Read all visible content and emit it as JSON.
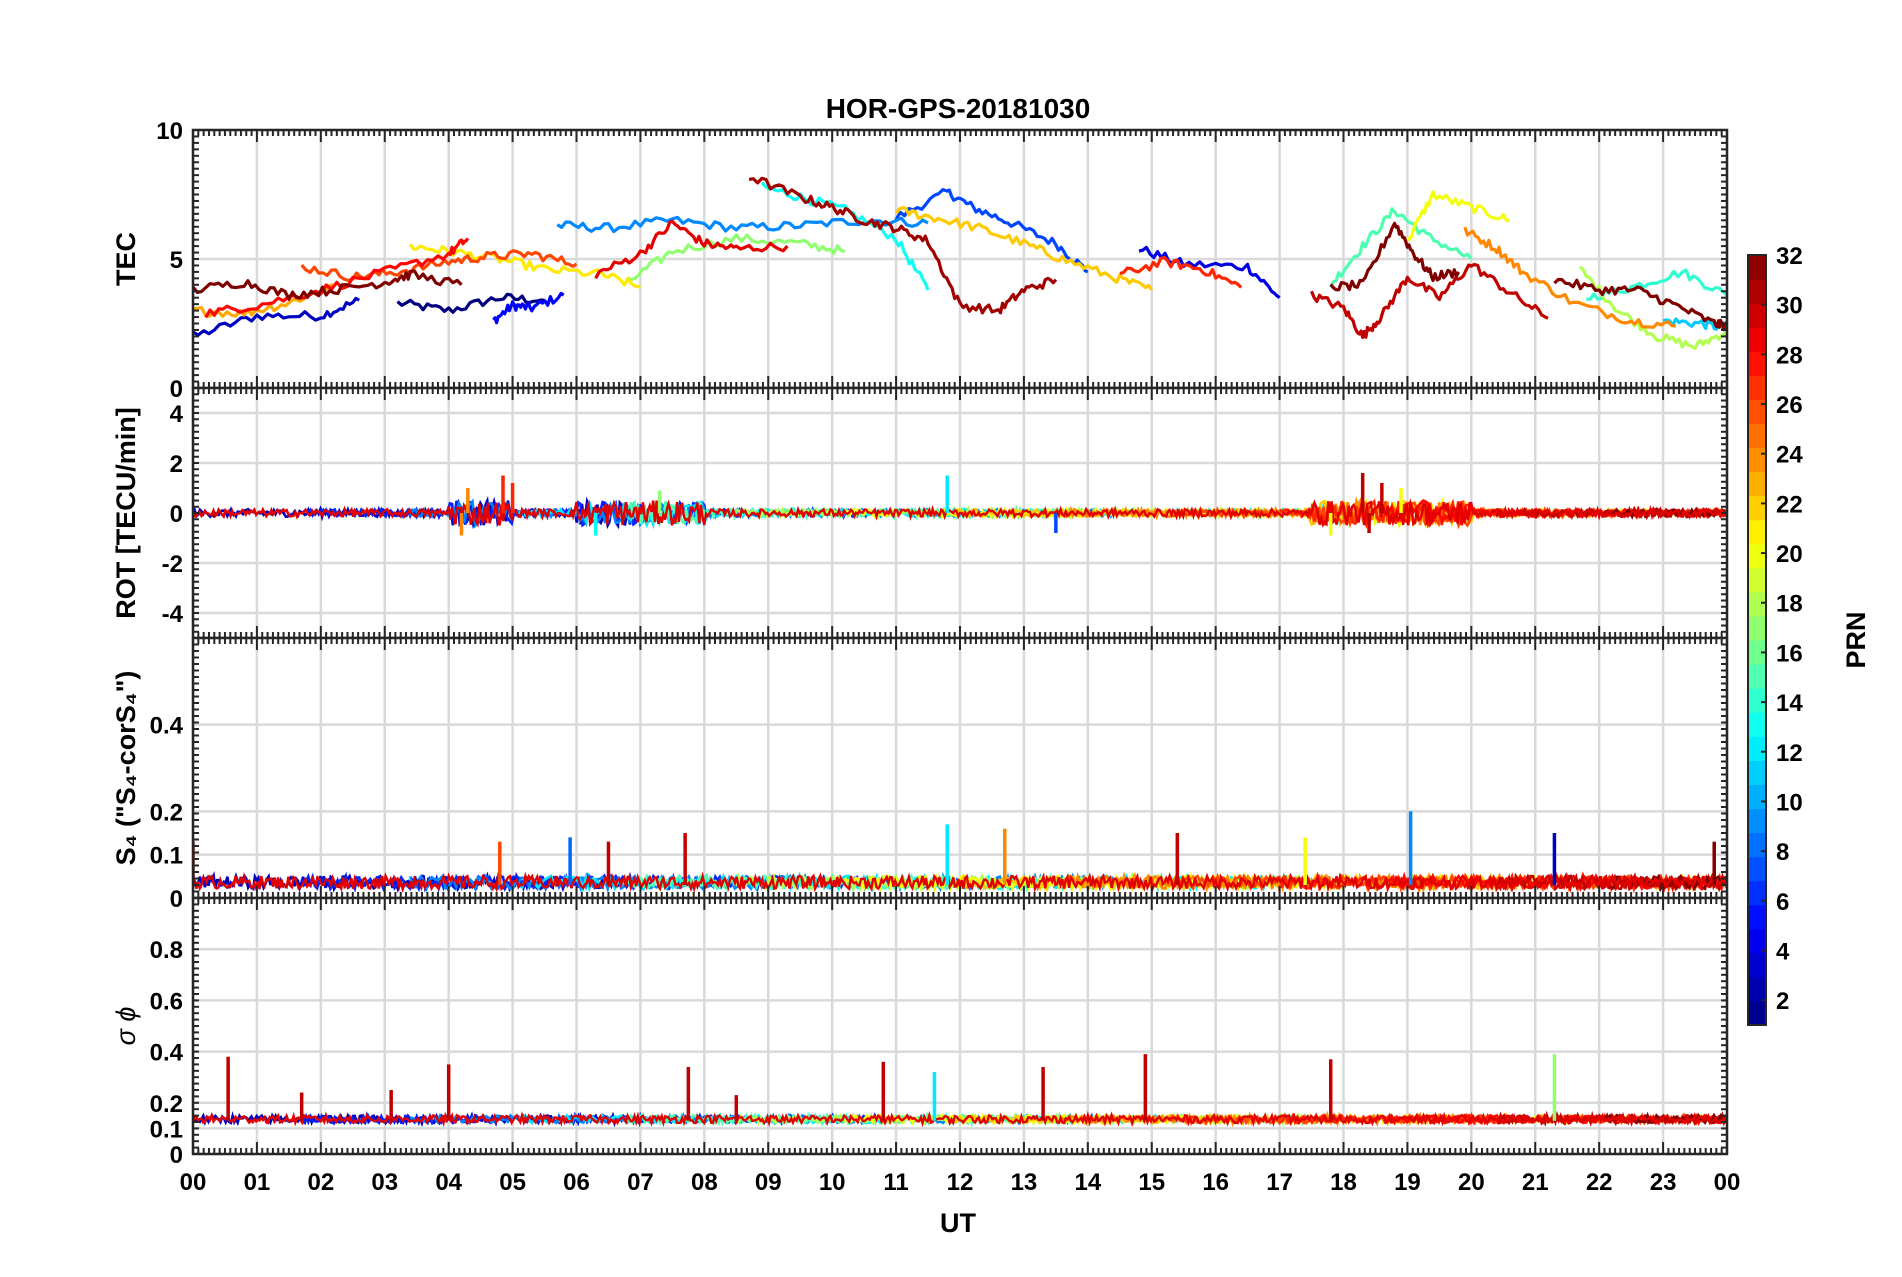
{
  "chart_data": {
    "type": "line",
    "title": "HOR-GPS-20181030",
    "xlabel": "UT",
    "x_tick_labels": [
      "00",
      "01",
      "02",
      "03",
      "04",
      "05",
      "06",
      "07",
      "08",
      "09",
      "10",
      "11",
      "12",
      "13",
      "14",
      "15",
      "16",
      "17",
      "18",
      "19",
      "20",
      "21",
      "22",
      "23",
      "00"
    ],
    "xlim": [
      0,
      24
    ],
    "grid": true,
    "colorbar": {
      "label": "PRN",
      "range": [
        1,
        32
      ],
      "tick_labels": [
        "2",
        "4",
        "6",
        "8",
        "10",
        "12",
        "14",
        "16",
        "18",
        "20",
        "22",
        "24",
        "26",
        "28",
        "30",
        "32"
      ],
      "tick_values": [
        2,
        4,
        6,
        8,
        10,
        12,
        14,
        16,
        18,
        20,
        22,
        24,
        26,
        28,
        30,
        32
      ],
      "colormap": "jet",
      "placement": "right"
    },
    "panels": [
      {
        "id": "tec",
        "ylabel": "TEC",
        "ylim": [
          0,
          10
        ],
        "y_tick_values": [
          0,
          5,
          10
        ],
        "y_tick_labels": [
          "0",
          "5",
          "10"
        ],
        "series": [
          {
            "prn": 1,
            "x": [
              3.2,
              4.0,
              4.8,
              5.5
            ],
            "y": [
              3.3,
              3.0,
              3.5,
              3.4
            ]
          },
          {
            "prn": 3,
            "x": [
              0.0,
              1.0,
              2.0,
              2.6
            ],
            "y": [
              2.0,
              2.8,
              2.8,
              3.4
            ]
          },
          {
            "prn": 5,
            "x": [
              4.7,
              5.0,
              5.3,
              5.8
            ],
            "y": [
              2.6,
              3.2,
              3.1,
              3.6
            ]
          },
          {
            "prn": 7,
            "x": [
              11.0,
              11.8,
              12.2,
              12.8,
              13.5,
              14.0
            ],
            "y": [
              6.6,
              7.6,
              7.0,
              6.4,
              5.6,
              4.5
            ]
          },
          {
            "prn": 4,
            "x": [
              14.8,
              15.5,
              16.5,
              17.0
            ],
            "y": [
              5.4,
              4.8,
              4.7,
              3.5
            ]
          },
          {
            "prn": 9,
            "x": [
              5.7,
              6.5,
              7.5,
              8.5,
              9.5,
              10.5,
              11.5
            ],
            "y": [
              6.3,
              6.2,
              6.5,
              6.2,
              6.3,
              6.5,
              6.4
            ]
          },
          {
            "prn": 11,
            "x": [
              23.0,
              23.6,
              24.0
            ],
            "y": [
              2.6,
              2.5,
              2.3
            ]
          },
          {
            "prn": 13,
            "x": [
              8.9,
              9.5,
              10.2,
              11.0,
              11.5
            ],
            "y": [
              7.8,
              7.4,
              6.9,
              5.8,
              3.8
            ]
          },
          {
            "prn": 14,
            "x": [
              21.8,
              22.5,
              23.3,
              24.0
            ],
            "y": [
              3.5,
              3.9,
              4.5,
              3.6
            ]
          },
          {
            "prn": 15,
            "x": [
              17.8,
              18.3,
              18.8,
              19.3,
              20.0
            ],
            "y": [
              4.0,
              5.5,
              6.9,
              5.9,
              5.0
            ]
          },
          {
            "prn": 17,
            "x": [
              6.8,
              7.5,
              8.5,
              9.5,
              10.2
            ],
            "y": [
              4.1,
              5.3,
              5.8,
              5.6,
              5.3
            ]
          },
          {
            "prn": 18,
            "x": [
              21.7,
              22.3,
              22.9,
              23.5,
              24.0
            ],
            "y": [
              4.6,
              3.0,
              2.0,
              1.6,
              2.2
            ]
          },
          {
            "prn": 20,
            "x": [
              19.0,
              19.4,
              20.0,
              20.6
            ],
            "y": [
              5.7,
              7.5,
              7.0,
              6.5
            ]
          },
          {
            "prn": 21,
            "x": [
              3.4,
              4.0,
              4.8,
              5.5,
              6.4,
              7.0
            ],
            "y": [
              5.5,
              5.3,
              5.0,
              4.6,
              4.4,
              3.9
            ]
          },
          {
            "prn": 22,
            "x": [
              11.0,
              11.6,
              12.3,
              13.0,
              13.6,
              14.4,
              15.0
            ],
            "y": [
              6.9,
              6.6,
              6.2,
              5.6,
              5.0,
              4.3,
              3.8
            ]
          },
          {
            "prn": 23,
            "x": [
              0.0,
              0.8,
              1.5,
              2.2
            ],
            "y": [
              3.0,
              2.9,
              3.3,
              4.0
            ]
          },
          {
            "prn": 24,
            "x": [
              19.9,
              20.4,
              20.8,
              21.6,
              22.5,
              23.2
            ],
            "y": [
              6.1,
              5.4,
              4.5,
              3.3,
              2.6,
              2.4
            ]
          },
          {
            "prn": 26,
            "x": [
              1.7,
              2.5,
              3.2,
              4.0,
              4.6,
              5.3,
              6.0
            ],
            "y": [
              4.7,
              4.3,
              4.5,
              4.9,
              5.1,
              5.2,
              4.8
            ]
          },
          {
            "prn": 28,
            "x": [
              0.2,
              1.0,
              2.0,
              3.0,
              4.0,
              4.3
            ],
            "y": [
              2.9,
              3.2,
              3.8,
              4.5,
              5.2,
              5.8
            ]
          },
          {
            "prn": 27,
            "x": [
              14.5,
              15.2,
              15.8,
              16.4
            ],
            "y": [
              4.4,
              4.9,
              4.6,
              3.9
            ]
          },
          {
            "prn": 29,
            "x": [
              6.3,
              7.0,
              7.5,
              8.0,
              8.5,
              9.3
            ],
            "y": [
              4.4,
              5.2,
              6.4,
              5.6,
              5.4,
              5.5
            ]
          },
          {
            "prn": 30,
            "x": [
              17.5,
              18.0,
              18.3,
              18.6,
              19.0,
              19.5,
              20.0,
              20.6,
              21.2
            ],
            "y": [
              3.6,
              3.1,
              2.0,
              2.8,
              4.3,
              3.5,
              4.8,
              3.7,
              2.7
            ]
          },
          {
            "prn": 31,
            "x": [
              8.7,
              9.5,
              10.0,
              10.5,
              11.0,
              11.5,
              12.0,
              12.6,
              13.0,
              13.5
            ],
            "y": [
              8.2,
              7.4,
              7.0,
              6.5,
              6.2,
              5.7,
              3.2,
              3.0,
              3.8,
              4.2
            ]
          },
          {
            "prn": 32,
            "x": [
              0.0,
              0.8,
              1.5,
              2.2,
              3.0,
              3.4,
              4.2
            ],
            "y": [
              3.8,
              4.1,
              3.6,
              3.8,
              4.1,
              4.4,
              4.0
            ]
          },
          {
            "prn": 32,
            "x": [
              17.8,
              18.3,
              18.8,
              19.1,
              19.4,
              19.8
            ],
            "y": [
              3.9,
              4.0,
              6.4,
              5.2,
              4.3,
              4.5
            ]
          },
          {
            "prn": 32,
            "x": [
              21.3,
              22.0,
              22.6,
              23.2,
              23.8,
              24.0
            ],
            "y": [
              4.2,
              3.8,
              3.8,
              3.2,
              2.5,
              2.4
            ]
          }
        ]
      },
      {
        "id": "rot",
        "ylabel": "ROT [TECU/min]",
        "ylim": [
          -5,
          5
        ],
        "y_tick_values": [
          -4,
          -2,
          0,
          2,
          4
        ],
        "y_tick_labels": [
          "-4",
          "-2",
          "0",
          "2",
          "4"
        ],
        "noise": {
          "baseline": 0,
          "typical_amplitude": 0.15,
          "active_windows_hours": [
            [
              4.0,
              5.0
            ],
            [
              6.0,
              8.0
            ],
            [
              17.5,
              20.0
            ]
          ],
          "active_amplitude": 0.5
        },
        "spikes": [
          {
            "x": 4.2,
            "y": -0.9,
            "prn": 24
          },
          {
            "x": 4.3,
            "y": 1.0,
            "prn": 24
          },
          {
            "x": 4.85,
            "y": 1.5,
            "prn": 27
          },
          {
            "x": 5.0,
            "y": 1.2,
            "prn": 27
          },
          {
            "x": 6.3,
            "y": -0.9,
            "prn": 13
          },
          {
            "x": 7.3,
            "y": 0.9,
            "prn": 17
          },
          {
            "x": 11.8,
            "y": 1.5,
            "prn": 12
          },
          {
            "x": 13.5,
            "y": -0.8,
            "prn": 7
          },
          {
            "x": 17.8,
            "y": -0.9,
            "prn": 20
          },
          {
            "x": 18.3,
            "y": 1.6,
            "prn": 30
          },
          {
            "x": 18.6,
            "y": 1.2,
            "prn": 30
          },
          {
            "x": 18.9,
            "y": 1.0,
            "prn": 20
          },
          {
            "x": 18.4,
            "y": -0.8,
            "prn": 30
          }
        ]
      },
      {
        "id": "s4",
        "ylabel": "S₄ (\"S₄-corS₄\")",
        "ylim": [
          0,
          0.6
        ],
        "y_tick_values": [
          0,
          0.1,
          0.2,
          0.4
        ],
        "y_tick_labels": [
          "0",
          "0.1",
          "0.2",
          "0.4"
        ],
        "noise": {
          "baseline": 0.03,
          "typical_amplitude": 0.03
        },
        "spikes": [
          {
            "x": 0.0,
            "y": 0.13,
            "prn": 32
          },
          {
            "x": 4.8,
            "y": 0.13,
            "prn": 26
          },
          {
            "x": 5.9,
            "y": 0.14,
            "prn": 8
          },
          {
            "x": 6.5,
            "y": 0.13,
            "prn": 30
          },
          {
            "x": 7.7,
            "y": 0.15,
            "prn": 30
          },
          {
            "x": 11.8,
            "y": 0.17,
            "prn": 12
          },
          {
            "x": 12.7,
            "y": 0.16,
            "prn": 24
          },
          {
            "x": 15.4,
            "y": 0.15,
            "prn": 30
          },
          {
            "x": 17.4,
            "y": 0.14,
            "prn": 20
          },
          {
            "x": 19.05,
            "y": 0.2,
            "prn": 9
          },
          {
            "x": 21.3,
            "y": 0.15,
            "prn": 3
          },
          {
            "x": 23.8,
            "y": 0.13,
            "prn": 32
          }
        ]
      },
      {
        "id": "sigma_phi",
        "ylabel": "σ ϕ",
        "ylim": [
          0,
          1.0
        ],
        "y_tick_values": [
          0,
          0.1,
          0.2,
          0.4,
          0.6,
          0.8
        ],
        "y_tick_labels": [
          "0",
          "0.1",
          "0.2",
          "0.4",
          "0.6",
          "0.8"
        ],
        "noise": {
          "baseline": 0.13,
          "typical_amplitude": 0.03
        },
        "spikes": [
          {
            "x": 0.55,
            "y": 0.38,
            "prn": 30
          },
          {
            "x": 1.7,
            "y": 0.24,
            "prn": 30
          },
          {
            "x": 3.1,
            "y": 0.25,
            "prn": 30
          },
          {
            "x": 4.0,
            "y": 0.35,
            "prn": 30
          },
          {
            "x": 7.75,
            "y": 0.34,
            "prn": 30
          },
          {
            "x": 8.5,
            "y": 0.23,
            "prn": 30
          },
          {
            "x": 10.8,
            "y": 0.36,
            "prn": 30
          },
          {
            "x": 11.6,
            "y": 0.32,
            "prn": 12
          },
          {
            "x": 13.3,
            "y": 0.34,
            "prn": 30
          },
          {
            "x": 14.9,
            "y": 0.39,
            "prn": 30
          },
          {
            "x": 17.8,
            "y": 0.37,
            "prn": 30
          },
          {
            "x": 21.3,
            "y": 0.39,
            "prn": 17
          }
        ]
      }
    ]
  }
}
